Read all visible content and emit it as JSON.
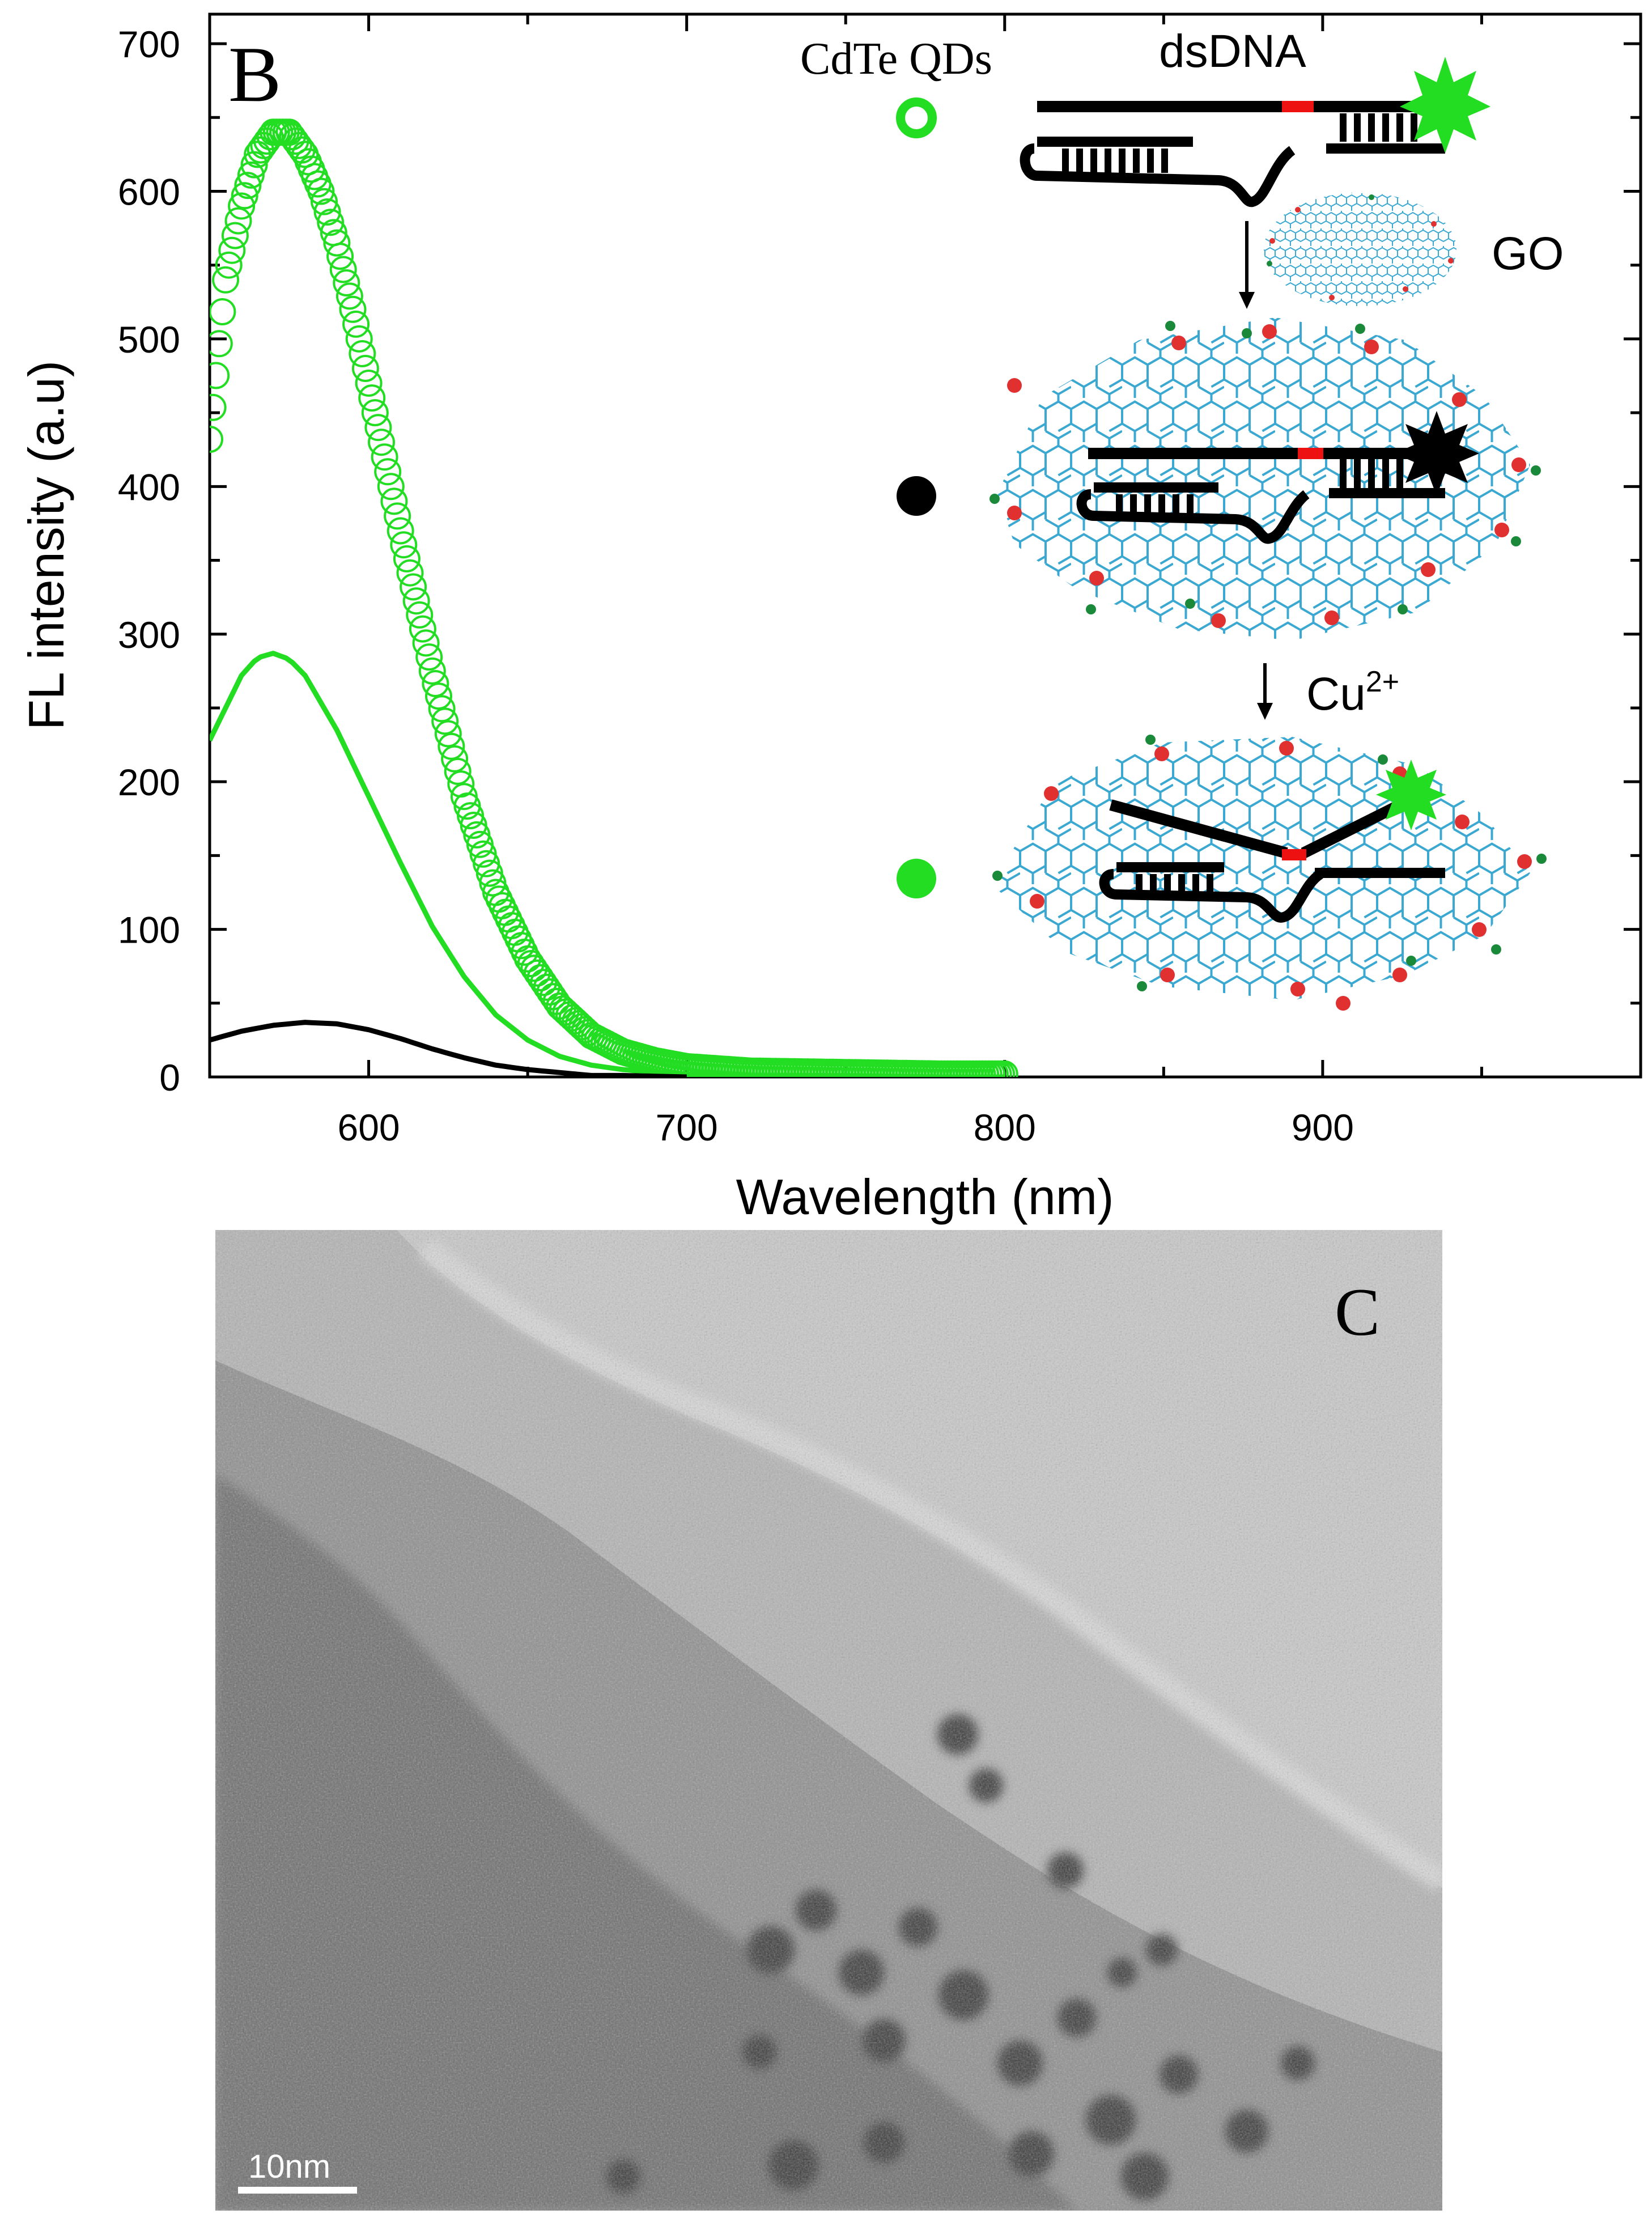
{
  "panel_b": {
    "label": "B",
    "schematic": {
      "qd_label": "CdTe QDs",
      "dsdna_label": "dsDNA",
      "go_label": "GO",
      "cu_label": "Cu",
      "cu_charge": "2+"
    }
  },
  "panel_c": {
    "label": "C",
    "scale_bar_label": "10nm"
  },
  "colors": {
    "green": "#22dd22",
    "black": "#000000",
    "graphene": "#3aa8d0",
    "oxygen_red": "#e03030",
    "hydrogen_green": "#1a8a3a",
    "dna_red": "#ee1111"
  },
  "chart_data": {
    "type": "line",
    "xlabel": "Wavelength (nm)",
    "ylabel": "FL intensity (a.u)",
    "xlim": [
      550,
      1000
    ],
    "ylim": [
      0,
      720
    ],
    "xticks": [
      600,
      700,
      800,
      900
    ],
    "yticks": [
      0,
      100,
      200,
      300,
      400,
      500,
      600,
      700
    ],
    "series": [
      {
        "style": "open-circles",
        "color": "#22dd22",
        "x": [
          550,
          555,
          560,
          565,
          570,
          575,
          580,
          585,
          590,
          595,
          600,
          610,
          620,
          630,
          640,
          650,
          660,
          670,
          680,
          690,
          700,
          720,
          750,
          780,
          800
        ],
        "y": [
          432,
          540,
          590,
          625,
          640,
          640,
          625,
          600,
          565,
          520,
          470,
          370,
          275,
          190,
          125,
          80,
          48,
          28,
          17,
          11,
          7,
          4,
          3,
          2,
          2
        ]
      },
      {
        "style": "solid",
        "color": "#22dd22",
        "x": [
          550,
          555,
          560,
          565,
          570,
          575,
          580,
          590,
          600,
          610,
          620,
          630,
          640,
          650,
          660,
          670,
          680,
          690,
          700,
          720,
          750,
          780,
          800
        ],
        "y": [
          228,
          250,
          272,
          284,
          287,
          283,
          272,
          235,
          190,
          145,
          102,
          68,
          42,
          25,
          14,
          8,
          5,
          3,
          2,
          1,
          1,
          0,
          0
        ]
      },
      {
        "style": "solid",
        "color": "#000000",
        "x": [
          550,
          560,
          570,
          580,
          590,
          600,
          610,
          620,
          630,
          640,
          650,
          660,
          670,
          680,
          700
        ],
        "y": [
          25,
          31,
          35,
          37,
          36,
          32,
          26,
          19,
          13,
          8,
          5,
          3,
          1,
          1,
          0
        ]
      }
    ]
  }
}
